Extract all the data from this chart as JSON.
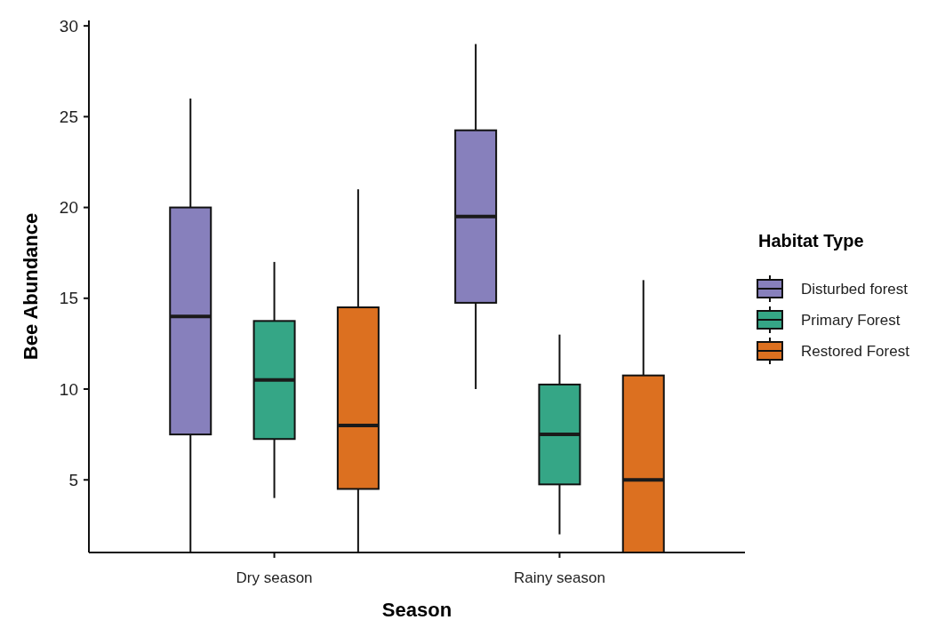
{
  "chart_data": {
    "type": "box",
    "xlabel": "Season",
    "ylabel": "Bee Abundance",
    "legend_title": "Habitat Type",
    "legend": "right",
    "grid": false,
    "categories": [
      "Dry season",
      "Rainy season"
    ],
    "ylim": [
      1,
      30.3
    ],
    "yticks": [
      5,
      10,
      15,
      20,
      25,
      30
    ],
    "series": [
      {
        "name": "Disturbed forest",
        "color": "#8780bc",
        "boxes": [
          {
            "low": 1,
            "q1": 7.5,
            "median": 14,
            "q3": 20,
            "high": 26
          },
          {
            "low": 10,
            "q1": 14.75,
            "median": 19.5,
            "q3": 24.25,
            "high": 29
          }
        ]
      },
      {
        "name": "Primary Forest",
        "color": "#35a686",
        "boxes": [
          {
            "low": 4,
            "q1": 7.25,
            "median": 10.5,
            "q3": 13.75,
            "high": 17
          },
          {
            "low": 2,
            "q1": 4.75,
            "median": 7.5,
            "q3": 10.25,
            "high": 13
          }
        ]
      },
      {
        "name": "Restored Forest",
        "color": "#dc7020",
        "boxes": [
          {
            "low": 1,
            "q1": 4.5,
            "median": 8,
            "q3": 14.5,
            "high": 21
          },
          {
            "low": 1,
            "q1": 1,
            "median": 5,
            "q3": 10.75,
            "high": 16
          }
        ]
      }
    ]
  }
}
